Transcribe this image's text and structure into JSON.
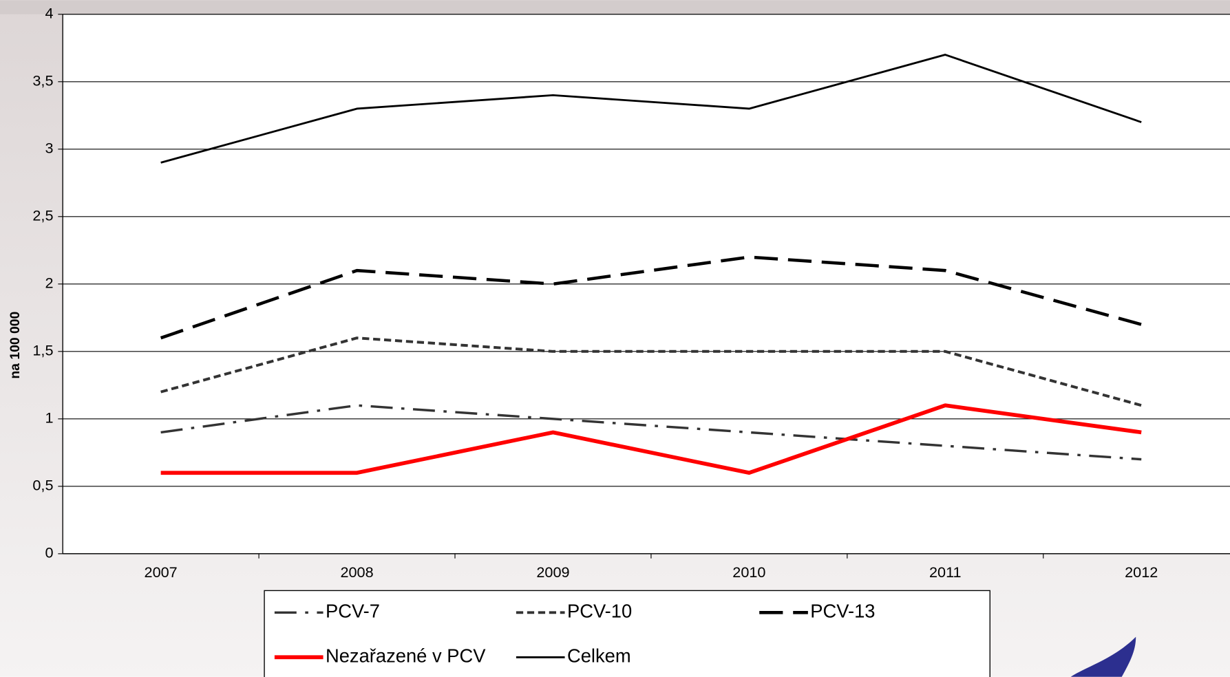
{
  "chart_data": {
    "type": "line",
    "y_label": "na 100 000",
    "categories": [
      "2007",
      "2008",
      "2009",
      "2010",
      "2011",
      "2012"
    ],
    "series": [
      {
        "name": "PCV-7",
        "color": "#333333",
        "line_style": "dashdot",
        "values": [
          0.9,
          1.1,
          1.0,
          0.9,
          0.8,
          0.7
        ]
      },
      {
        "name": "PCV-10",
        "color": "#333333",
        "line_style": "dotted",
        "values": [
          1.2,
          1.6,
          1.5,
          1.5,
          1.5,
          1.1
        ]
      },
      {
        "name": "PCV-13",
        "color": "#000000",
        "line_style": "dashed",
        "values": [
          1.6,
          2.1,
          2.0,
          2.2,
          2.1,
          1.7
        ]
      },
      {
        "name": "Nezařazené v PCV",
        "color": "#ff0000",
        "line_style": "solid-thick",
        "values": [
          0.6,
          0.6,
          0.9,
          0.6,
          1.1,
          0.9
        ]
      },
      {
        "name": "Celkem",
        "color": "#000000",
        "line_style": "solid",
        "values": [
          2.9,
          3.3,
          3.4,
          3.3,
          3.7,
          3.2
        ]
      }
    ],
    "ylim": [
      0,
      4
    ],
    "yticks": [
      0,
      {
        "value": 0.5,
        "label": "0,5"
      },
      1,
      {
        "value": 1.5,
        "label": "1,5"
      },
      2,
      {
        "value": 2.5,
        "label": "2,5"
      },
      3,
      {
        "value": 3.5,
        "label": "3,5"
      },
      4
    ],
    "grid": true
  }
}
